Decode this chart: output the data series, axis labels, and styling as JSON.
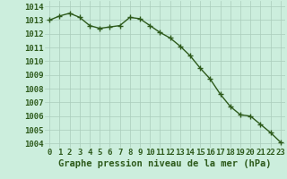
{
  "x": [
    0,
    1,
    2,
    3,
    4,
    5,
    6,
    7,
    8,
    9,
    10,
    11,
    12,
    13,
    14,
    15,
    16,
    17,
    18,
    19,
    20,
    21,
    22,
    23
  ],
  "y": [
    1013.0,
    1013.3,
    1013.5,
    1013.2,
    1012.6,
    1012.4,
    1012.5,
    1012.6,
    1013.2,
    1013.1,
    1012.6,
    1012.1,
    1011.7,
    1011.1,
    1010.4,
    1009.5,
    1008.7,
    1007.6,
    1006.7,
    1006.1,
    1006.0,
    1005.4,
    1004.8,
    1004.1
  ],
  "line_color": "#2d5a1b",
  "marker": "+",
  "marker_size": 4,
  "background_color": "#cceedd",
  "grid_color": "#aaccbb",
  "xlabel": "Graphe pression niveau de la mer (hPa)",
  "xlabel_fontsize": 7.5,
  "ylabel_ticks": [
    1004,
    1005,
    1006,
    1007,
    1008,
    1009,
    1010,
    1011,
    1012,
    1013,
    1014
  ],
  "ylim": [
    1003.7,
    1014.4
  ],
  "xlim": [
    -0.5,
    23.5
  ],
  "tick_color": "#2d5a1b",
  "tick_fontsize": 6.5,
  "line_width": 1.0,
  "marker_edge_width": 1.0
}
